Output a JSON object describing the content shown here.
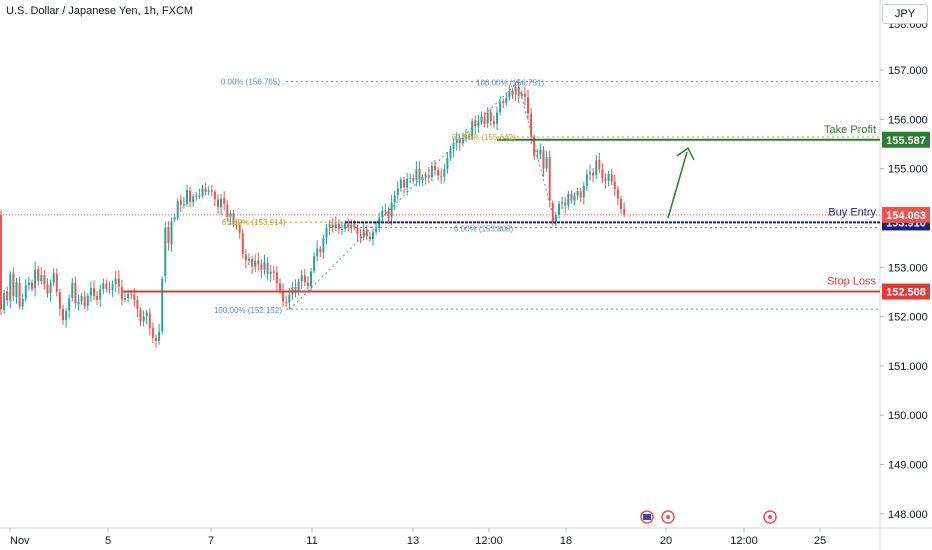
{
  "header": {
    "title": "U.S. Dollar / Japanese Yen, 1h, FXCM",
    "currency": "JPY"
  },
  "colors": {
    "bull": "#26a69a",
    "bear": "#ef5350",
    "take_profit": "#2e7d32",
    "entry": "#1a237e",
    "stop": "#e53935",
    "fib": "#5b8fc7",
    "fib_mid": "#c8a02a",
    "arrow": "#2e7d32",
    "price_tag": "#ef5350"
  },
  "chart_data": {
    "type": "candlestick",
    "title": "U.S. Dollar / Japanese Yen, 1h, FXCM",
    "y_axis": {
      "ticks": [
        148.0,
        149.0,
        150.0,
        151.0,
        152.0,
        153.0,
        155.0,
        156.0,
        157.0
      ],
      "ylim": [
        147.6,
        158.4
      ],
      "position": "right",
      "partially_visible_top_label": "158.000"
    },
    "x_axis": {
      "ticks": [
        "Nov",
        "5",
        "7",
        "11",
        "13",
        "12:00",
        "18",
        "20",
        "12:00",
        "25"
      ]
    },
    "path": [
      [
        0,
        152.4
      ],
      [
        4,
        152.0
      ],
      [
        6,
        152.6
      ],
      [
        9,
        152.3
      ],
      [
        12,
        152.9
      ],
      [
        15,
        152.4
      ],
      [
        18,
        152.7
      ],
      [
        21,
        152.2
      ],
      [
        25,
        152.4
      ],
      [
        29,
        152.8
      ],
      [
        33,
        152.5
      ],
      [
        37,
        153.0
      ],
      [
        40,
        152.7
      ],
      [
        44,
        152.9
      ],
      [
        48,
        152.4
      ],
      [
        51,
        152.6
      ],
      [
        55,
        152.9
      ],
      [
        60,
        152.3
      ],
      [
        64,
        151.9
      ],
      [
        69,
        152.2
      ],
      [
        74,
        152.7
      ],
      [
        78,
        152.1
      ],
      [
        82,
        152.5
      ],
      [
        86,
        152.2
      ],
      [
        92,
        152.6
      ],
      [
        98,
        152.3
      ],
      [
        104,
        152.7
      ],
      [
        110,
        152.5
      ],
      [
        118,
        152.8
      ],
      [
        124,
        152.3
      ],
      [
        131,
        152.5
      ],
      [
        137,
        152.3
      ],
      [
        142,
        151.9
      ],
      [
        148,
        152.1
      ],
      [
        153,
        151.6
      ],
      [
        158,
        151.5
      ],
      [
        162,
        151.8
      ],
      [
        165,
        153.5
      ],
      [
        168,
        154.0
      ],
      [
        171,
        153.2
      ],
      [
        174,
        154.3
      ],
      [
        177,
        153.9
      ],
      [
        180,
        154.5
      ],
      [
        184,
        154.1
      ],
      [
        188,
        154.6
      ],
      [
        192,
        154.3
      ],
      [
        196,
        154.5
      ],
      [
        200,
        154.4
      ],
      [
        204,
        154.6
      ],
      [
        208,
        154.5
      ],
      [
        212,
        154.6
      ],
      [
        216,
        154.4
      ],
      [
        220,
        154.2
      ],
      [
        224,
        154.5
      ],
      [
        228,
        154.0
      ],
      [
        232,
        154.1
      ],
      [
        236,
        153.8
      ],
      [
        240,
        153.9
      ],
      [
        243,
        153.4
      ],
      [
        246,
        153.1
      ],
      [
        250,
        153.2
      ],
      [
        254,
        153.0
      ],
      [
        258,
        153.2
      ],
      [
        262,
        152.9
      ],
      [
        266,
        153.1
      ],
      [
        270,
        152.8
      ],
      [
        274,
        153.0
      ],
      [
        278,
        152.7
      ],
      [
        282,
        152.5
      ],
      [
        286,
        152.2
      ],
      [
        290,
        152.4
      ],
      [
        294,
        152.6
      ],
      [
        298,
        152.5
      ],
      [
        302,
        152.9
      ],
      [
        306,
        152.7
      ],
      [
        310,
        152.6
      ],
      [
        314,
        153.1
      ],
      [
        318,
        153.4
      ],
      [
        322,
        153.3
      ],
      [
        326,
        153.7
      ],
      [
        330,
        153.9
      ],
      [
        334,
        153.8
      ],
      [
        338,
        153.9
      ],
      [
        342,
        153.7
      ],
      [
        346,
        153.9
      ],
      [
        350,
        153.8
      ],
      [
        354,
        153.9
      ],
      [
        358,
        153.7
      ],
      [
        362,
        153.6
      ],
      [
        366,
        153.8
      ],
      [
        370,
        153.5
      ],
      [
        374,
        153.7
      ],
      [
        378,
        153.8
      ],
      [
        382,
        154.1
      ],
      [
        386,
        154.2
      ],
      [
        390,
        154.0
      ],
      [
        394,
        154.4
      ],
      [
        398,
        154.5
      ],
      [
        402,
        154.8
      ],
      [
        406,
        154.6
      ],
      [
        410,
        154.9
      ],
      [
        414,
        154.7
      ],
      [
        418,
        155.0
      ],
      [
        422,
        154.7
      ],
      [
        426,
        154.9
      ],
      [
        430,
        154.8
      ],
      [
        434,
        155.1
      ],
      [
        438,
        154.9
      ],
      [
        442,
        154.8
      ],
      [
        446,
        155.0
      ],
      [
        450,
        155.3
      ],
      [
        454,
        155.5
      ],
      [
        458,
        155.6
      ],
      [
        462,
        155.5
      ],
      [
        466,
        155.7
      ],
      [
        470,
        155.6
      ],
      [
        474,
        156.0
      ],
      [
        478,
        155.8
      ],
      [
        482,
        156.1
      ],
      [
        486,
        155.9
      ],
      [
        490,
        156.2
      ],
      [
        494,
        155.8
      ],
      [
        498,
        156.1
      ],
      [
        502,
        156.4
      ],
      [
        506,
        156.3
      ],
      [
        510,
        156.6
      ],
      [
        514,
        156.5
      ],
      [
        518,
        156.7
      ],
      [
        521,
        156.4
      ],
      [
        525,
        156.6
      ],
      [
        529,
        156.2
      ],
      [
        533,
        155.6
      ],
      [
        537,
        155.1
      ],
      [
        541,
        155.5
      ],
      [
        545,
        155.0
      ],
      [
        549,
        155.3
      ],
      [
        552,
        154.0
      ],
      [
        555,
        153.9
      ],
      [
        558,
        154.1
      ],
      [
        562,
        154.4
      ],
      [
        566,
        154.2
      ],
      [
        570,
        154.5
      ],
      [
        574,
        154.3
      ],
      [
        578,
        154.6
      ],
      [
        582,
        154.4
      ],
      [
        586,
        154.7
      ],
      [
        590,
        155.0
      ],
      [
        594,
        154.8
      ],
      [
        598,
        155.2
      ],
      [
        602,
        154.9
      ],
      [
        606,
        154.7
      ],
      [
        610,
        154.9
      ],
      [
        614,
        154.7
      ],
      [
        618,
        154.5
      ],
      [
        622,
        154.2
      ],
      [
        626,
        154.06
      ]
    ],
    "levels": [
      {
        "name": "Take Profit",
        "value": 155.587,
        "label": "Take Profit",
        "tag": "155.587",
        "x_start": 497
      },
      {
        "name": "Buy Entry",
        "value": 153.91,
        "label": "Buy Entry",
        "tag": "153.910",
        "x_start": 345
      },
      {
        "name": "Stop Loss",
        "value": 152.508,
        "label": "Stop Loss",
        "tag": "152.508",
        "x_start": 123
      }
    ],
    "current_price": {
      "value": 154.063,
      "tag": "154.063"
    },
    "fib_labels": [
      {
        "text": "0.00% (156.765)",
        "value": 156.765
      },
      {
        "text": "100.00% (156.751)",
        "value": 156.751
      },
      {
        "text": "61.80% (155.642)",
        "value": 155.642
      },
      {
        "text": "61.80% (153.914)",
        "value": 153.914
      },
      {
        "text": "0.00% (153.808)",
        "value": 153.808
      },
      {
        "text": "100.00% (152.152)",
        "value": 152.152
      }
    ],
    "events": [
      "flag-icon",
      "event-icon",
      "event-icon"
    ]
  }
}
